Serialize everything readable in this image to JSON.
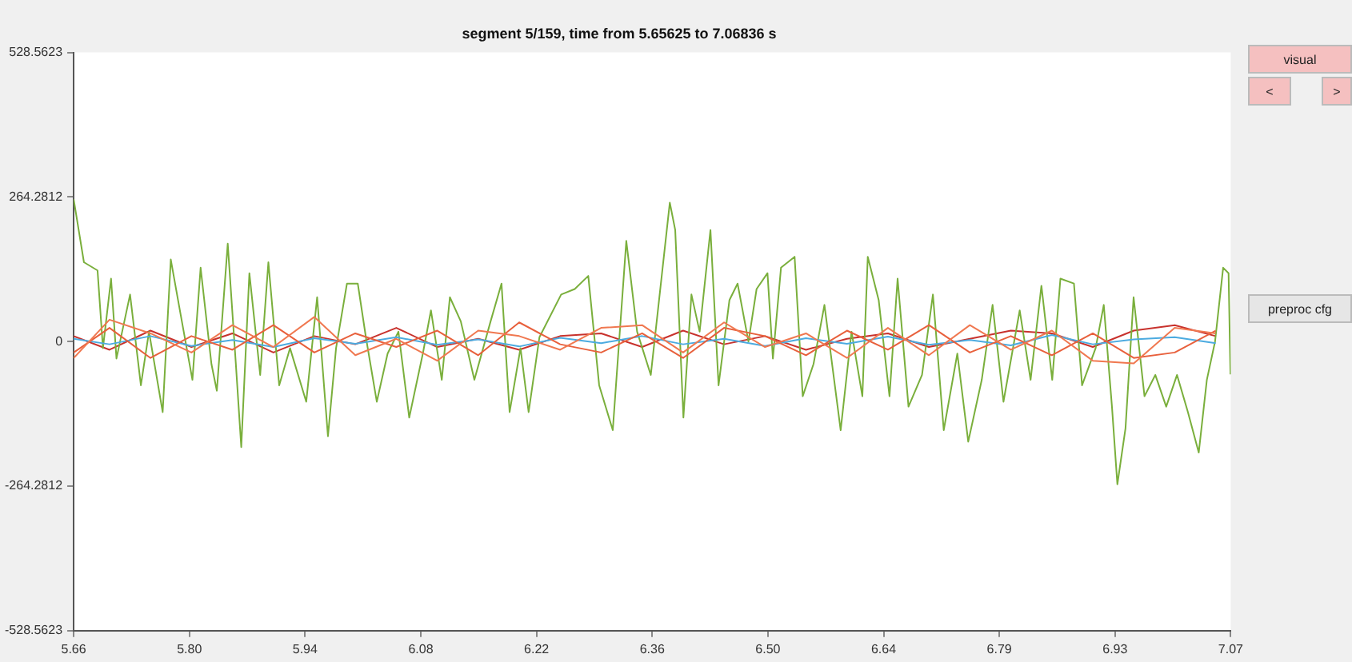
{
  "chart_data": {
    "type": "line",
    "title": "segment 5/159, time from 5.65625 to 7.06836 s",
    "xlim": [
      5.65625,
      7.06836
    ],
    "xticks": [
      {
        "value": 5.65625,
        "label": "5.66"
      },
      {
        "value": 5.797461,
        "label": "5.80"
      },
      {
        "value": 5.938672,
        "label": "5.94"
      },
      {
        "value": 6.079883,
        "label": "6.08"
      },
      {
        "value": 6.221094,
        "label": "6.22"
      },
      {
        "value": 6.362305,
        "label": "6.36"
      },
      {
        "value": 6.503516,
        "label": "6.50"
      },
      {
        "value": 6.644727,
        "label": "6.64"
      },
      {
        "value": 6.785938,
        "label": "6.79"
      },
      {
        "value": 6.927149,
        "label": "6.93"
      },
      {
        "value": 7.06836,
        "label": "7.07"
      }
    ],
    "ylim": [
      -528.5623,
      528.5623
    ],
    "yticks": [
      -528.5623,
      -264.2812,
      0,
      264.2812,
      528.5623
    ],
    "grid": false,
    "legend": false,
    "annotations": [
      "visual",
      "<",
      ">",
      "preproc cfg"
    ],
    "series": [
      {
        "color": "#f07850",
        "x": [
          5.6563,
          5.7,
          5.75,
          5.8,
          5.85,
          5.9,
          5.95,
          6.0,
          6.05,
          6.1,
          6.15,
          6.2,
          6.25,
          6.3,
          6.35,
          6.4,
          6.45,
          6.5,
          6.55,
          6.6,
          6.65,
          6.7,
          6.75,
          6.8,
          6.85,
          6.9,
          6.95,
          7.0,
          7.05
        ],
        "values": [
          -30,
          40,
          15,
          -20,
          30,
          -10,
          45,
          -25,
          5,
          -35,
          20,
          10,
          -15,
          25,
          30,
          -20,
          35,
          -10,
          15,
          -30,
          25,
          -25,
          30,
          -15,
          20,
          -35,
          -40,
          25,
          15
        ]
      },
      {
        "color": "#e8603c",
        "x": [
          5.6563,
          5.7,
          5.75,
          5.8,
          5.85,
          5.9,
          5.95,
          6.0,
          6.05,
          6.1,
          6.15,
          6.2,
          6.25,
          6.3,
          6.35,
          6.4,
          6.45,
          6.5,
          6.55,
          6.6,
          6.65,
          6.7,
          6.75,
          6.8,
          6.85,
          6.9,
          6.95,
          7.0,
          7.05
        ],
        "values": [
          -20,
          25,
          -30,
          10,
          -15,
          30,
          -20,
          15,
          -10,
          20,
          -25,
          35,
          -5,
          -20,
          15,
          -30,
          25,
          10,
          -25,
          20,
          -15,
          30,
          -20,
          10,
          -25,
          15,
          -30,
          -20,
          20
        ]
      },
      {
        "color": "#4cabe0",
        "x": [
          5.6563,
          5.7,
          5.75,
          5.8,
          5.85,
          5.9,
          5.95,
          6.0,
          6.05,
          6.1,
          6.15,
          6.2,
          6.25,
          6.3,
          6.35,
          6.4,
          6.45,
          6.5,
          6.55,
          6.6,
          6.65,
          6.7,
          6.75,
          6.8,
          6.85,
          6.9,
          6.95,
          7.0,
          7.05
        ],
        "values": [
          5,
          -5,
          10,
          -8,
          3,
          -10,
          6,
          -4,
          8,
          -6,
          4,
          -9,
          7,
          -3,
          10,
          -5,
          5,
          -8,
          6,
          -4,
          9,
          -6,
          3,
          -7,
          12,
          -5,
          4,
          8,
          -3
        ]
      },
      {
        "color": "#7aaf3c",
        "x": [
          5.6563,
          5.6688,
          5.6854,
          5.692,
          5.7019,
          5.7085,
          5.7251,
          5.7383,
          5.7482,
          5.7649,
          5.7748,
          5.7847,
          5.8012,
          5.8112,
          5.8244,
          5.831,
          5.8443,
          5.8542,
          5.8608,
          5.8707,
          5.8839,
          5.8939,
          5.9071,
          5.9203,
          5.9401,
          5.9534,
          5.9666,
          5.9765,
          5.9898,
          6.003,
          6.0129,
          6.0262,
          6.0394,
          6.0526,
          6.0658,
          6.0824,
          6.0923,
          6.1055,
          6.1154,
          6.1287,
          6.1453,
          6.1651,
          6.1784,
          6.1883,
          6.2016,
          6.2115,
          6.2247,
          6.2512,
          6.2678,
          6.2843,
          6.2976,
          6.3142,
          6.3307,
          6.3439,
          6.3606,
          6.3838,
          6.3904,
          6.4004,
          6.4102,
          6.4202,
          6.4334,
          6.4433,
          6.4566,
          6.4665,
          6.4798,
          6.4897,
          6.503,
          6.5096,
          6.5195,
          6.5361,
          6.546,
          6.5592,
          6.5725,
          6.5923,
          6.6056,
          6.6188,
          6.6254,
          6.6387,
          6.6519,
          6.6618,
          6.6751,
          6.6916,
          6.7049,
          6.7181,
          6.7347,
          6.748,
          6.7645,
          6.7777,
          6.791,
          6.8108,
          6.8241,
          6.8373,
          6.8505,
          6.8605,
          6.877,
          6.8869,
          6.9035,
          6.9134,
          6.9234,
          6.93,
          6.9399,
          6.9498,
          6.9631,
          6.9763,
          6.9896,
          7.0028,
          7.0161,
          7.0293,
          7.0392,
          7.0492,
          7.0591,
          7.0657,
          7.068
        ],
        "values": [
          260,
          145,
          130,
          -12,
          115,
          -31,
          86,
          -80,
          18,
          -129,
          150,
          67,
          -70,
          135,
          -41,
          -90,
          179,
          -41,
          -193,
          125,
          -61,
          145,
          -80,
          -12,
          -110,
          81,
          -173,
          -12,
          106,
          106,
          8,
          -110,
          -22,
          18,
          -139,
          -22,
          57,
          -70,
          81,
          37,
          -70,
          37,
          106,
          -129,
          -12,
          -129,
          8,
          86,
          96,
          120,
          -80,
          -162,
          184,
          18,
          -61,
          254,
          204,
          -139,
          86,
          18,
          204,
          -80,
          76,
          106,
          0,
          96,
          125,
          -31,
          135,
          155,
          -100,
          -41,
          67,
          -162,
          18,
          -100,
          155,
          76,
          -100,
          115,
          -119,
          -61,
          86,
          -162,
          -22,
          -183,
          -70,
          67,
          -110,
          57,
          -70,
          102,
          -70,
          115,
          106,
          -80,
          -12,
          67,
          -119,
          -261,
          -159,
          81,
          -100,
          -61,
          -119,
          -61,
          -129,
          -203,
          -70,
          0,
          135,
          125,
          -60
        ]
      },
      {
        "color": "#c8322d",
        "x": [
          5.6563,
          5.7,
          5.75,
          5.8,
          5.85,
          5.9,
          5.95,
          6.0,
          6.05,
          6.1,
          6.15,
          6.2,
          6.25,
          6.3,
          6.35,
          6.4,
          6.45,
          6.5,
          6.55,
          6.6,
          6.65,
          6.7,
          6.75,
          6.8,
          6.85,
          6.9,
          6.95,
          7.0,
          7.05
        ],
        "values": [
          10,
          -15,
          20,
          -10,
          15,
          -20,
          10,
          -5,
          25,
          -10,
          5,
          -15,
          10,
          15,
          -10,
          20,
          -5,
          10,
          -15,
          5,
          15,
          -10,
          5,
          20,
          15,
          -10,
          20,
          30,
          10
        ]
      }
    ]
  }
}
